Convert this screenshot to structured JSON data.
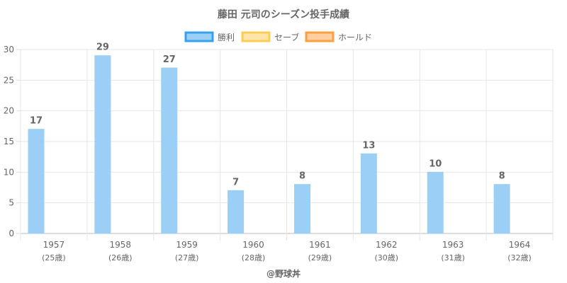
{
  "chart_data": {
    "type": "bar",
    "title": "藤田 元司のシーズン投手成績",
    "categories": [
      "1957",
      "1958",
      "1959",
      "1960",
      "1961",
      "1962",
      "1963",
      "1964"
    ],
    "category_sublabels": [
      "(25歳)",
      "(26歳)",
      "(27歳)",
      "(28歳)",
      "(29歳)",
      "(30歳)",
      "(31歳)",
      "(32歳)"
    ],
    "series": [
      {
        "name": "勝利",
        "values": [
          17,
          29,
          27,
          7,
          8,
          13,
          10,
          8
        ],
        "color": "#36a2eb",
        "fill": "#9ccff5"
      },
      {
        "name": "セーブ",
        "values": [
          null,
          null,
          null,
          null,
          null,
          null,
          null,
          null
        ],
        "color": "#ffcd56",
        "fill": "#ffe6a8"
      },
      {
        "name": "ホールド",
        "values": [
          null,
          null,
          null,
          null,
          null,
          null,
          null,
          null
        ],
        "color": "#ff9f40",
        "fill": "#ffcf9f"
      }
    ],
    "y_ticks": [
      "0",
      "5",
      "10",
      "15",
      "20",
      "25",
      "30"
    ],
    "ylim": [
      0,
      30
    ],
    "grid": true,
    "legend_position": "top",
    "credit": "@野球丼"
  }
}
